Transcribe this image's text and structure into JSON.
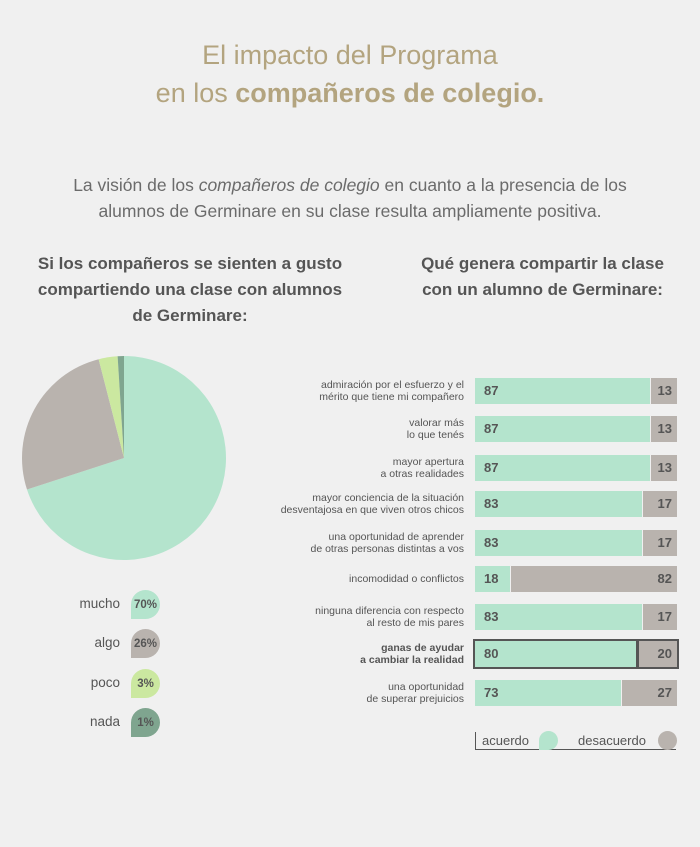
{
  "title": {
    "line1": "El impacto del Programa",
    "line2_prefix": "en los ",
    "line2_bold": "compañeros de colegio."
  },
  "intro": {
    "t1": "La visión de los ",
    "t2": "compañeros de colegio",
    "t3": " en cuanto a la presencia de los alumnos de Germinare en su clase resulta ampliamente positiva."
  },
  "left_heading": "Si los compañeros se sienten a gusto compartiendo una clase con alumnos de Germinare:",
  "right_heading": "Qué genera compartir la clase con un alumno de Germinare:",
  "colors": {
    "acuerdo": "#b4e4cd",
    "desacuerdo": "#b9b3ae",
    "poco": "#cbe8a0",
    "nada": "#7fa58f"
  },
  "chart_data": [
    {
      "type": "pie",
      "categories": [
        "mucho",
        "algo",
        "poco",
        "nada"
      ],
      "values": [
        70,
        26,
        3,
        1
      ],
      "labels": [
        "70%",
        "26%",
        "3%",
        "1%"
      ]
    },
    {
      "type": "bar",
      "stacked": true,
      "orientation": "horizontal",
      "categories": [
        "admiración por el esfuerzo y el mérito que tiene mi compañero",
        "valorar más lo que tenés",
        "mayor apertura a otras realidades",
        "mayor conciencia de la situación desventajosa en que viven otros chicos",
        "una oportunidad de aprender de otras personas distintas a vos",
        "incomodidad o conflictos",
        "ninguna diferencia con respecto al resto de mis pares",
        "ganas de ayudar a cambiar la realidad",
        "una oportunidad de superar prejuicios"
      ],
      "series": [
        {
          "name": "acuerdo",
          "values": [
            87,
            87,
            87,
            83,
            83,
            18,
            83,
            80,
            73
          ]
        },
        {
          "name": "desacuerdo",
          "values": [
            13,
            13,
            13,
            17,
            17,
            82,
            17,
            20,
            27
          ]
        }
      ]
    }
  ],
  "bar_labels": [
    [
      "admiración por el esfuerzo y el",
      "mérito que tiene mi compañero"
    ],
    [
      "valorar más",
      "lo que tenés"
    ],
    [
      "mayor apertura",
      "a otras realidades"
    ],
    [
      "mayor conciencia de la situación",
      "desventajosa en que viven otros chicos"
    ],
    [
      "una oportunidad de aprender",
      "de otras personas distintas a vos"
    ],
    [
      "incomodidad o conflictos"
    ],
    [
      "ninguna diferencia con respecto",
      "al resto de mis pares"
    ],
    [
      "ganas de ayudar",
      "a cambiar la realidad"
    ],
    [
      "una oportunidad",
      "de superar prejuicios"
    ]
  ],
  "highlighted_index": 7
}
